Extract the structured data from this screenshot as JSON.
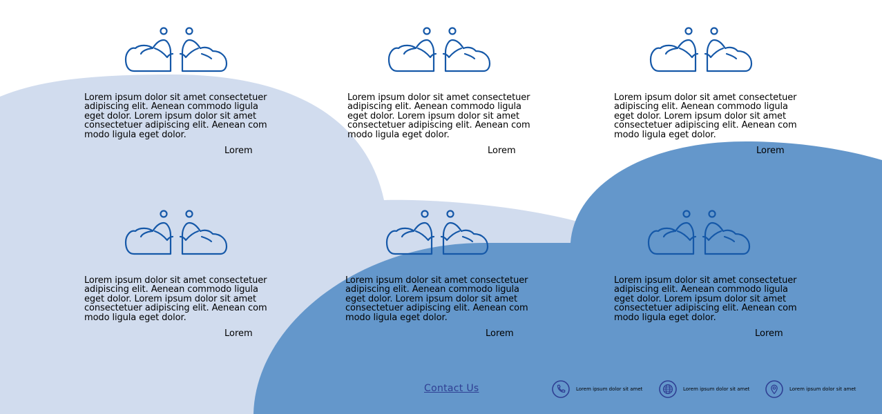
{
  "colors": {
    "light_shape": "#d1dcee",
    "dark_shape": "#6497cb",
    "icon_stroke": "#1558a8",
    "contact_accent": "#2f3f93"
  },
  "cards": [
    {
      "icon": "people-hugging-icon",
      "text": "Lorem ipsum dolor sit amet consectetuer adipiscing elit. Aenean commodo ligula eget dolor. Lorem ipsum dolor sit amet consectetuer adipiscing elit. Aenean com modo ligula eget dolor.",
      "caption": "Lorem"
    },
    {
      "icon": "people-hugging-icon",
      "text": "Lorem ipsum dolor sit amet consectetuer adipiscing elit. Aenean commodo ligula eget dolor. Lorem ipsum dolor sit amet consectetuer adipiscing elit. Aenean com modo ligula eget dolor.",
      "caption": "Lorem"
    },
    {
      "icon": "people-hugging-icon",
      "text": "Lorem ipsum dolor sit amet consectetuer adipiscing elit. Aenean commodo ligula eget dolor. Lorem ipsum dolor sit amet consectetuer adipiscing elit. Aenean com modo ligula eget dolor.",
      "caption": "Lorem"
    },
    {
      "icon": "people-hugging-icon",
      "text": "Lorem ipsum dolor sit amet consectetuer adipiscing elit. Aenean commodo ligula eget dolor. Lorem ipsum dolor sit amet consectetuer adipiscing elit. Aenean com modo ligula eget dolor.",
      "caption": "Lorem"
    },
    {
      "icon": "people-hugging-icon",
      "text": "Lorem ipsum dolor sit amet consectetuer adipiscing elit. Aenean commodo ligula eget dolor. Lorem ipsum dolor sit amet consectetuer adipiscing elit. Aenean com modo ligula eget dolor.",
      "caption": "Lorem"
    },
    {
      "icon": "people-hugging-icon",
      "text": "Lorem ipsum dolor sit amet consectetuer adipiscing elit. Aenean commodo ligula eget dolor. Lorem ipsum dolor sit amet consectetuer adipiscing elit. Aenean com modo ligula eget dolor.",
      "caption": "Lorem"
    }
  ],
  "contact": {
    "link_label": "Contact Us",
    "items": [
      {
        "icon": "phone-icon",
        "text": "Lorem ipsum dolor sit amet"
      },
      {
        "icon": "globe-icon",
        "text": "Lorem ipsum dolor sit amet"
      },
      {
        "icon": "location-pin-icon",
        "text": "Lorem ipsum dolor sit amet"
      }
    ]
  }
}
